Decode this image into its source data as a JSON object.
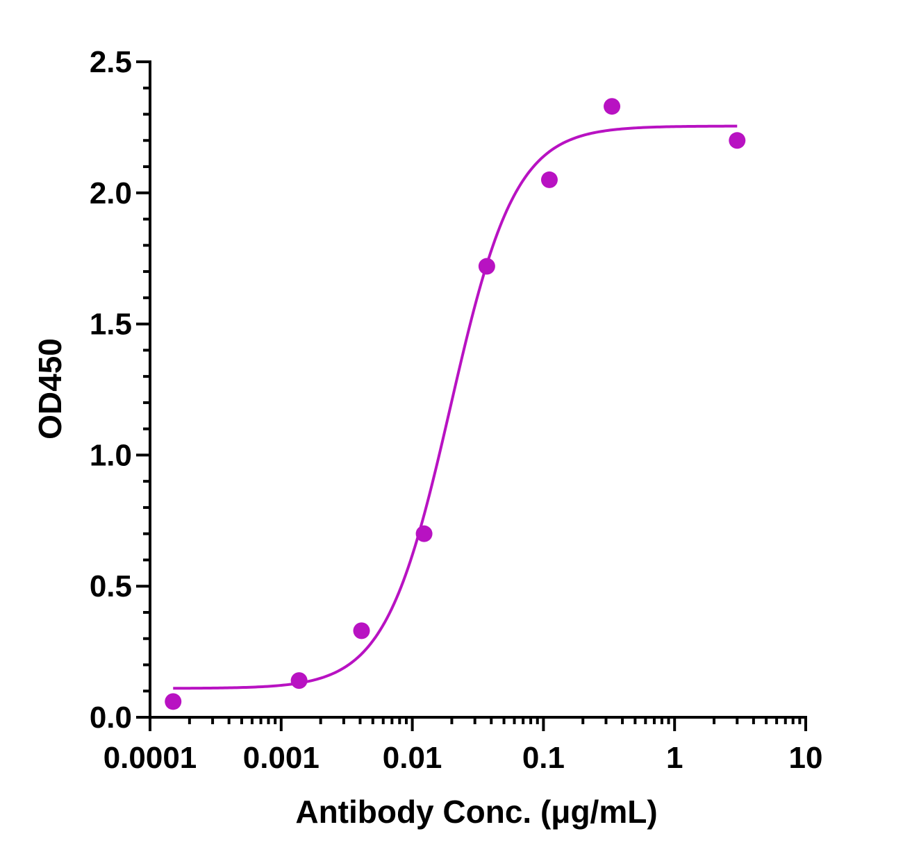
{
  "chart_data": {
    "type": "scatter",
    "title": "",
    "xlabel": "Antibody Conc. (μg/mL)",
    "ylabel": "OD450",
    "xscale": "log",
    "xlim": [
      0.0001,
      10
    ],
    "ylim": [
      0.0,
      2.5
    ],
    "x_ticks": [
      {
        "value": 0.0001,
        "label": "0.0001"
      },
      {
        "value": 0.001,
        "label": "0.001"
      },
      {
        "value": 0.01,
        "label": "0.01"
      },
      {
        "value": 0.1,
        "label": "0.1"
      },
      {
        "value": 1,
        "label": "1"
      },
      {
        "value": 10,
        "label": "10"
      }
    ],
    "y_ticks": [
      {
        "value": 0.0,
        "label": "0.0"
      },
      {
        "value": 0.5,
        "label": "0.5"
      },
      {
        "value": 1.0,
        "label": "1.0"
      },
      {
        "value": 1.5,
        "label": "1.5"
      },
      {
        "value": 2.0,
        "label": "2.0"
      },
      {
        "value": 2.5,
        "label": "2.5"
      }
    ],
    "y_minor_step": 0.1,
    "grid": false,
    "legend": "none",
    "series": [
      {
        "points": [
          {
            "x": 0.00015,
            "y": 0.06
          },
          {
            "x": 0.00137,
            "y": 0.14
          },
          {
            "x": 0.0041,
            "y": 0.33
          },
          {
            "x": 0.0123,
            "y": 0.7
          },
          {
            "x": 0.037,
            "y": 1.72
          },
          {
            "x": 0.111,
            "y": 2.05
          },
          {
            "x": 0.333,
            "y": 2.33
          },
          {
            "x": 3.0,
            "y": 2.2
          }
        ],
        "fit": {
          "model": "4PL",
          "bottom": 0.11,
          "top": 2.255,
          "ec50": 0.0195,
          "hill": 1.75,
          "x_range": [
            0.00015,
            3.0
          ]
        },
        "color": "#b812c2"
      }
    ]
  }
}
